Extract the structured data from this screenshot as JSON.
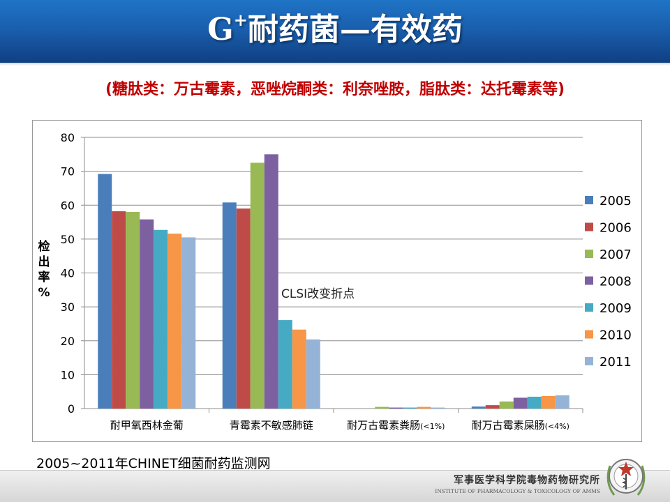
{
  "slide": {
    "title_main": "G",
    "title_sup": "+",
    "title_rest": "耐药菌—有效药",
    "subtitle": "(糖肽类：万古霉素，恶唑烷酮类：利奈唑胺，脂肽类：达托霉素等)",
    "source_note": "2005~2011年CHINET细菌耐药监测网",
    "institute_cn": "军事医学科学院毒物药物研究所",
    "institute_en": "INSTITUTE OF PHARMACOLOGY & TOXICOLOGY OF AMMS",
    "logo_icon": "institute-emblem-icon"
  },
  "chart_data": {
    "type": "bar",
    "title": "",
    "ylabel": "检出率%",
    "xlabel": "",
    "ylim": [
      0,
      80
    ],
    "yticks": [
      0,
      10,
      20,
      30,
      40,
      50,
      60,
      70,
      80
    ],
    "grid": "horizontal",
    "legend_position": "right",
    "categories": [
      "耐甲氧西林金葡",
      "青霉素不敏感肺链",
      "耐万古霉素粪肠",
      "耐万古霉素屎肠"
    ],
    "category_suffixes": [
      "",
      "",
      "(<1%)",
      "(<4%)"
    ],
    "series": [
      {
        "name": "2005",
        "color": "#4a7ebb",
        "values": [
          69.2,
          60.8,
          0.0,
          0.6
        ]
      },
      {
        "name": "2006",
        "color": "#be4b48",
        "values": [
          58.2,
          59.0,
          0.0,
          1.0
        ]
      },
      {
        "name": "2007",
        "color": "#98b954",
        "values": [
          58.0,
          72.5,
          0.5,
          2.1
        ]
      },
      {
        "name": "2008",
        "color": "#7d60a0",
        "values": [
          55.8,
          75.0,
          0.3,
          3.2
        ]
      },
      {
        "name": "2009",
        "color": "#46aac5",
        "values": [
          52.7,
          26.1,
          0.3,
          3.5
        ]
      },
      {
        "name": "2010",
        "color": "#f79646",
        "values": [
          51.6,
          23.3,
          0.5,
          3.7
        ]
      },
      {
        "name": "2011",
        "color": "#95b3d7",
        "values": [
          50.5,
          20.4,
          0.3,
          3.9
        ]
      }
    ],
    "annotations": [
      {
        "text": "CLSI改变折点",
        "category": "青霉素不敏感肺链"
      }
    ]
  }
}
